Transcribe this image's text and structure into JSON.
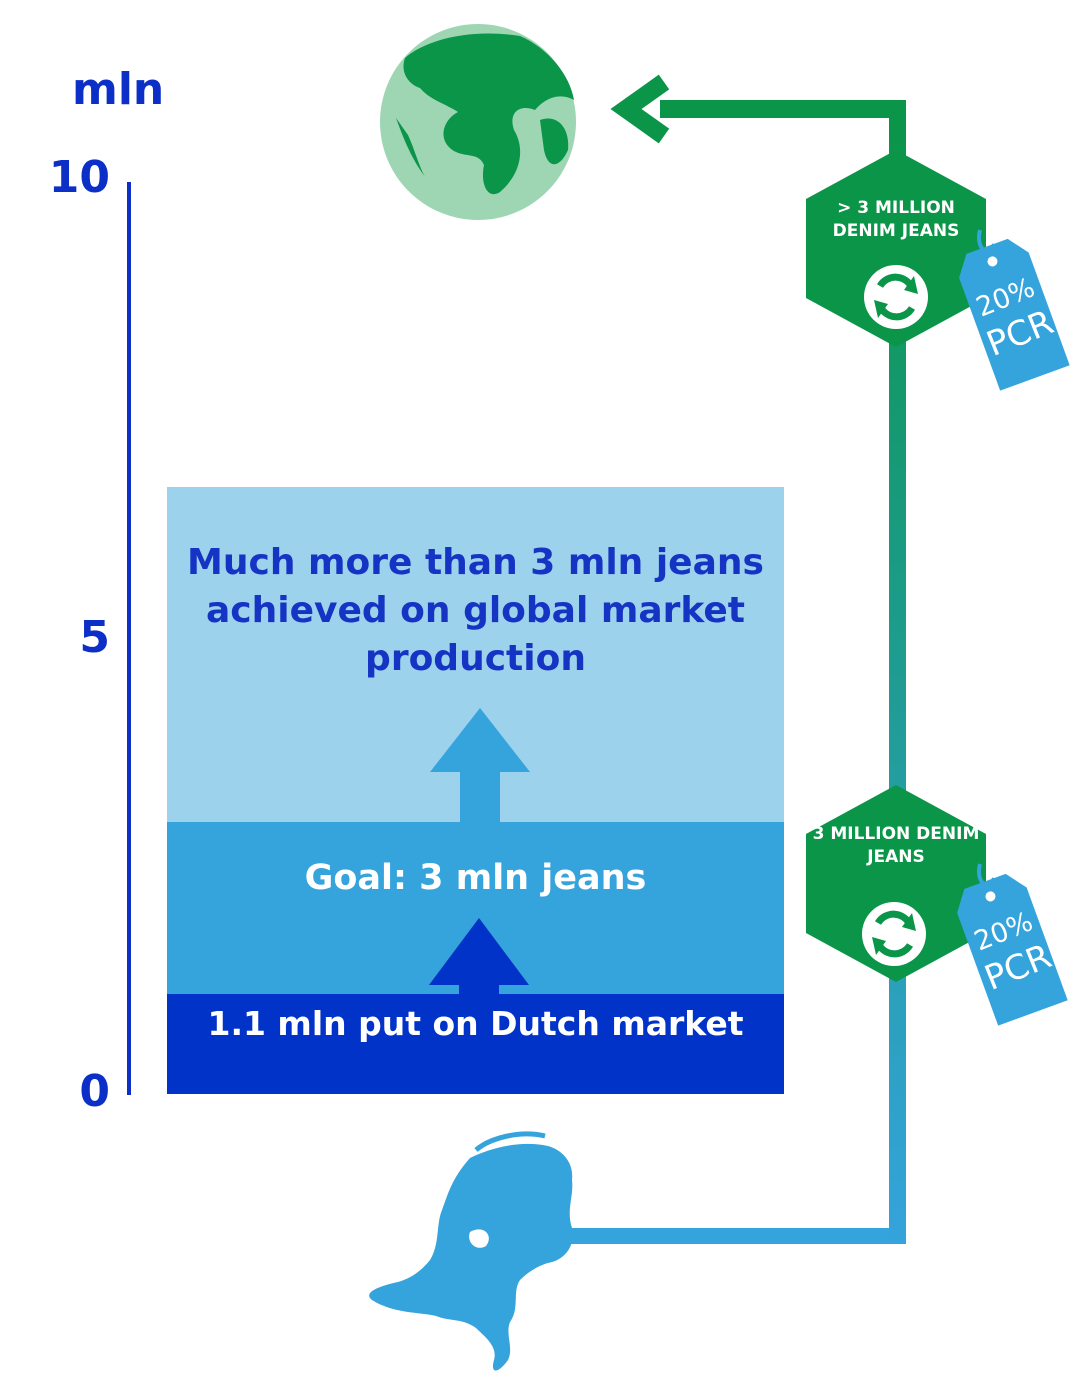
{
  "axis": {
    "unit": "mln",
    "ticks": [
      "10",
      "5",
      "0"
    ]
  },
  "bands": {
    "global": "Much more than 3 mln jeans achieved on global market production",
    "goal": "Goal: 3 mln jeans",
    "dutch": "1.1 mln put on Dutch market"
  },
  "hexagons": [
    {
      "label": "> 3 MILLION DENIM JEANS",
      "icon": "recycle-icon",
      "color": "#0a9549"
    },
    {
      "label": "3 MILLION DENIM JEANS",
      "icon": "recycle-icon",
      "color": "#0a9549"
    }
  ],
  "tags": [
    {
      "percent": "20%",
      "code": "PCR",
      "color": "#35a3dc"
    },
    {
      "percent": "20%",
      "code": "PCR",
      "color": "#35a3dc"
    }
  ],
  "icons": {
    "top": "globe-icon",
    "bottom": "netherlands-map-icon"
  },
  "colors": {
    "axis": "#0c2fc7",
    "global_band": "#9cd2ec",
    "goal_band": "#35a3dc",
    "dutch_band": "#0233c9",
    "flow_green": "#0a9549",
    "flow_blue": "#35a3dc"
  }
}
